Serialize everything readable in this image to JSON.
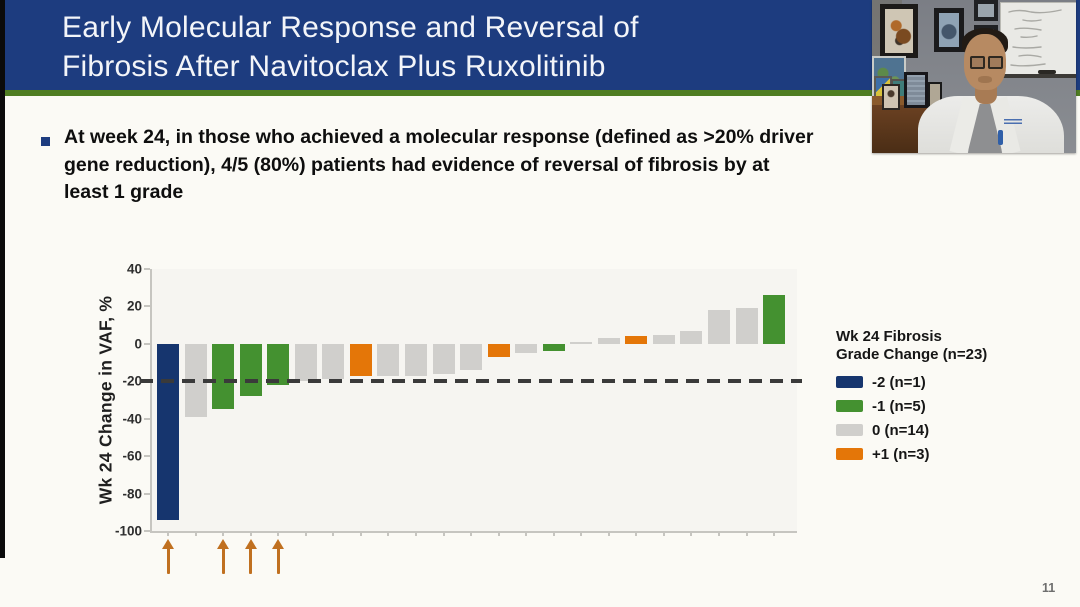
{
  "slide": {
    "title_lines": [
      "Early Molecular Response and Reversal of",
      "Fibrosis After Navitoclax Plus Ruxolitinib"
    ],
    "bullet": "At week 24, in those who achieved a molecular response (defined as >20% driver gene reduction), 4/5 (80%) patients had evidence of reversal of fibrosis by at least 1 grade",
    "page_number": "11",
    "colors": {
      "title_bar": "#1d3c7f",
      "accent_line": "#4f7d22"
    }
  },
  "webcam": {
    "description": "Presenter in white lab coat and glasses seated at a desk, with framed pictures, a map, photo frames and a whiteboard with handwriting behind him"
  },
  "chart_data": {
    "type": "bar",
    "title": "",
    "xlabel": "",
    "ylabel": "Wk 24 Change in VAF, %",
    "ylim": [
      -100,
      40
    ],
    "yticks": [
      40,
      20,
      0,
      -20,
      -40,
      -60,
      -80,
      -100
    ],
    "grid": false,
    "reference_line": {
      "y": -20,
      "style": "dashed",
      "color": "#3a3a3a"
    },
    "bars": [
      {
        "value": -94,
        "grade": "-2"
      },
      {
        "value": -39,
        "grade": "0"
      },
      {
        "value": -35,
        "grade": "-1"
      },
      {
        "value": -28,
        "grade": "-1"
      },
      {
        "value": -22,
        "grade": "-1"
      },
      {
        "value": -20,
        "grade": "0"
      },
      {
        "value": -19,
        "grade": "0"
      },
      {
        "value": -17,
        "grade": "+1"
      },
      {
        "value": -17,
        "grade": "0"
      },
      {
        "value": -17,
        "grade": "0"
      },
      {
        "value": -16,
        "grade": "0"
      },
      {
        "value": -14,
        "grade": "0"
      },
      {
        "value": -7,
        "grade": "+1"
      },
      {
        "value": -5,
        "grade": "0"
      },
      {
        "value": -4,
        "grade": "-1"
      },
      {
        "value": 1,
        "grade": "0"
      },
      {
        "value": 3,
        "grade": "0"
      },
      {
        "value": 4,
        "grade": "+1"
      },
      {
        "value": 5,
        "grade": "0"
      },
      {
        "value": 7,
        "grade": "0"
      },
      {
        "value": 18,
        "grade": "0"
      },
      {
        "value": 19,
        "grade": "0"
      },
      {
        "value": 26,
        "grade": "-1"
      }
    ],
    "arrow_bar_indices": [
      0,
      2,
      3,
      4
    ],
    "arrow_color": "#c07020",
    "grade_colors": {
      "-2": "#16356e",
      "-1": "#449130",
      "0": "#d0cfcc",
      "+1": "#e47608"
    },
    "legend": {
      "position": "right",
      "title_lines": [
        "Wk 24 Fibrosis",
        "Grade Change (n=23)"
      ],
      "items": [
        {
          "label": "-2 (n=1)",
          "grade": "-2",
          "color": "#16356e"
        },
        {
          "label": "-1 (n=5)",
          "grade": "-1",
          "color": "#449130"
        },
        {
          "label": "0 (n=14)",
          "grade": "0",
          "color": "#d0cfcc"
        },
        {
          "label": "+1 (n=3)",
          "grade": "+1",
          "color": "#e47608"
        }
      ]
    }
  }
}
